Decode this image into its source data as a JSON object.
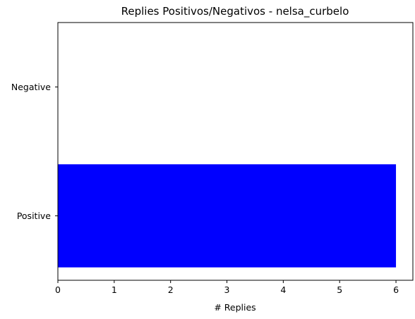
{
  "chart_data": {
    "type": "bar",
    "orientation": "horizontal",
    "title": "Replies Positivos/Negativos - nelsa_curbelo",
    "xlabel": "# Replies",
    "ylabel": "",
    "categories": [
      "Positive",
      "Negative"
    ],
    "values": [
      6,
      0
    ],
    "bar_color": "#0000ff",
    "xlim": [
      0,
      6.3
    ],
    "xticks": [
      0,
      1,
      2,
      3,
      4,
      5,
      6
    ],
    "grid": false,
    "legend": "none"
  }
}
